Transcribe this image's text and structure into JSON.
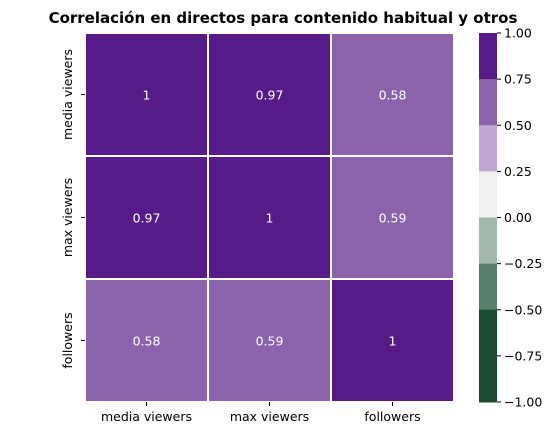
{
  "chart_data": {
    "type": "heatmap",
    "title": "Correlación en directos para contenido habitual y otros",
    "x_categories": [
      "media viewers",
      "max viewers",
      "followers"
    ],
    "y_categories": [
      "media viewers",
      "max viewers",
      "followers"
    ],
    "values": [
      [
        1,
        0.97,
        0.58
      ],
      [
        0.97,
        1,
        0.59
      ],
      [
        0.58,
        0.59,
        1
      ]
    ],
    "cell_labels": [
      [
        "1",
        "0.97",
        "0.58"
      ],
      [
        "0.97",
        "1",
        "0.59"
      ],
      [
        "0.58",
        "0.59",
        "1"
      ]
    ],
    "colorbar": {
      "vmin": -1.0,
      "vmax": 1.0,
      "ticks": [
        "1.00",
        "0.75",
        "0.50",
        "0.25",
        "0.00",
        "−0.25",
        "−0.50",
        "−0.75",
        "−1.00"
      ],
      "tick_values": [
        1.0,
        0.75,
        0.5,
        0.25,
        0.0,
        -0.25,
        -0.5,
        -0.75,
        -1.0
      ],
      "bins": [
        {
          "from": 0.75,
          "to": 1.0,
          "color": "#571a89"
        },
        {
          "from": 0.5,
          "to": 0.75,
          "color": "#8b63ac"
        },
        {
          "from": 0.25,
          "to": 0.5,
          "color": "#c0a8d2"
        },
        {
          "from": 0.0,
          "to": 0.25,
          "color": "#f2f2f2"
        },
        {
          "from": -0.25,
          "to": 0.0,
          "color": "#a2b8ab"
        },
        {
          "from": -0.5,
          "to": -0.25,
          "color": "#577f6b"
        },
        {
          "from": -0.75,
          "to": -0.5,
          "color": "#1a4a32"
        },
        {
          "from": -1.0,
          "to": -0.75,
          "color": "#1a4a32"
        }
      ]
    },
    "cell_border_color": "#ffffff"
  }
}
